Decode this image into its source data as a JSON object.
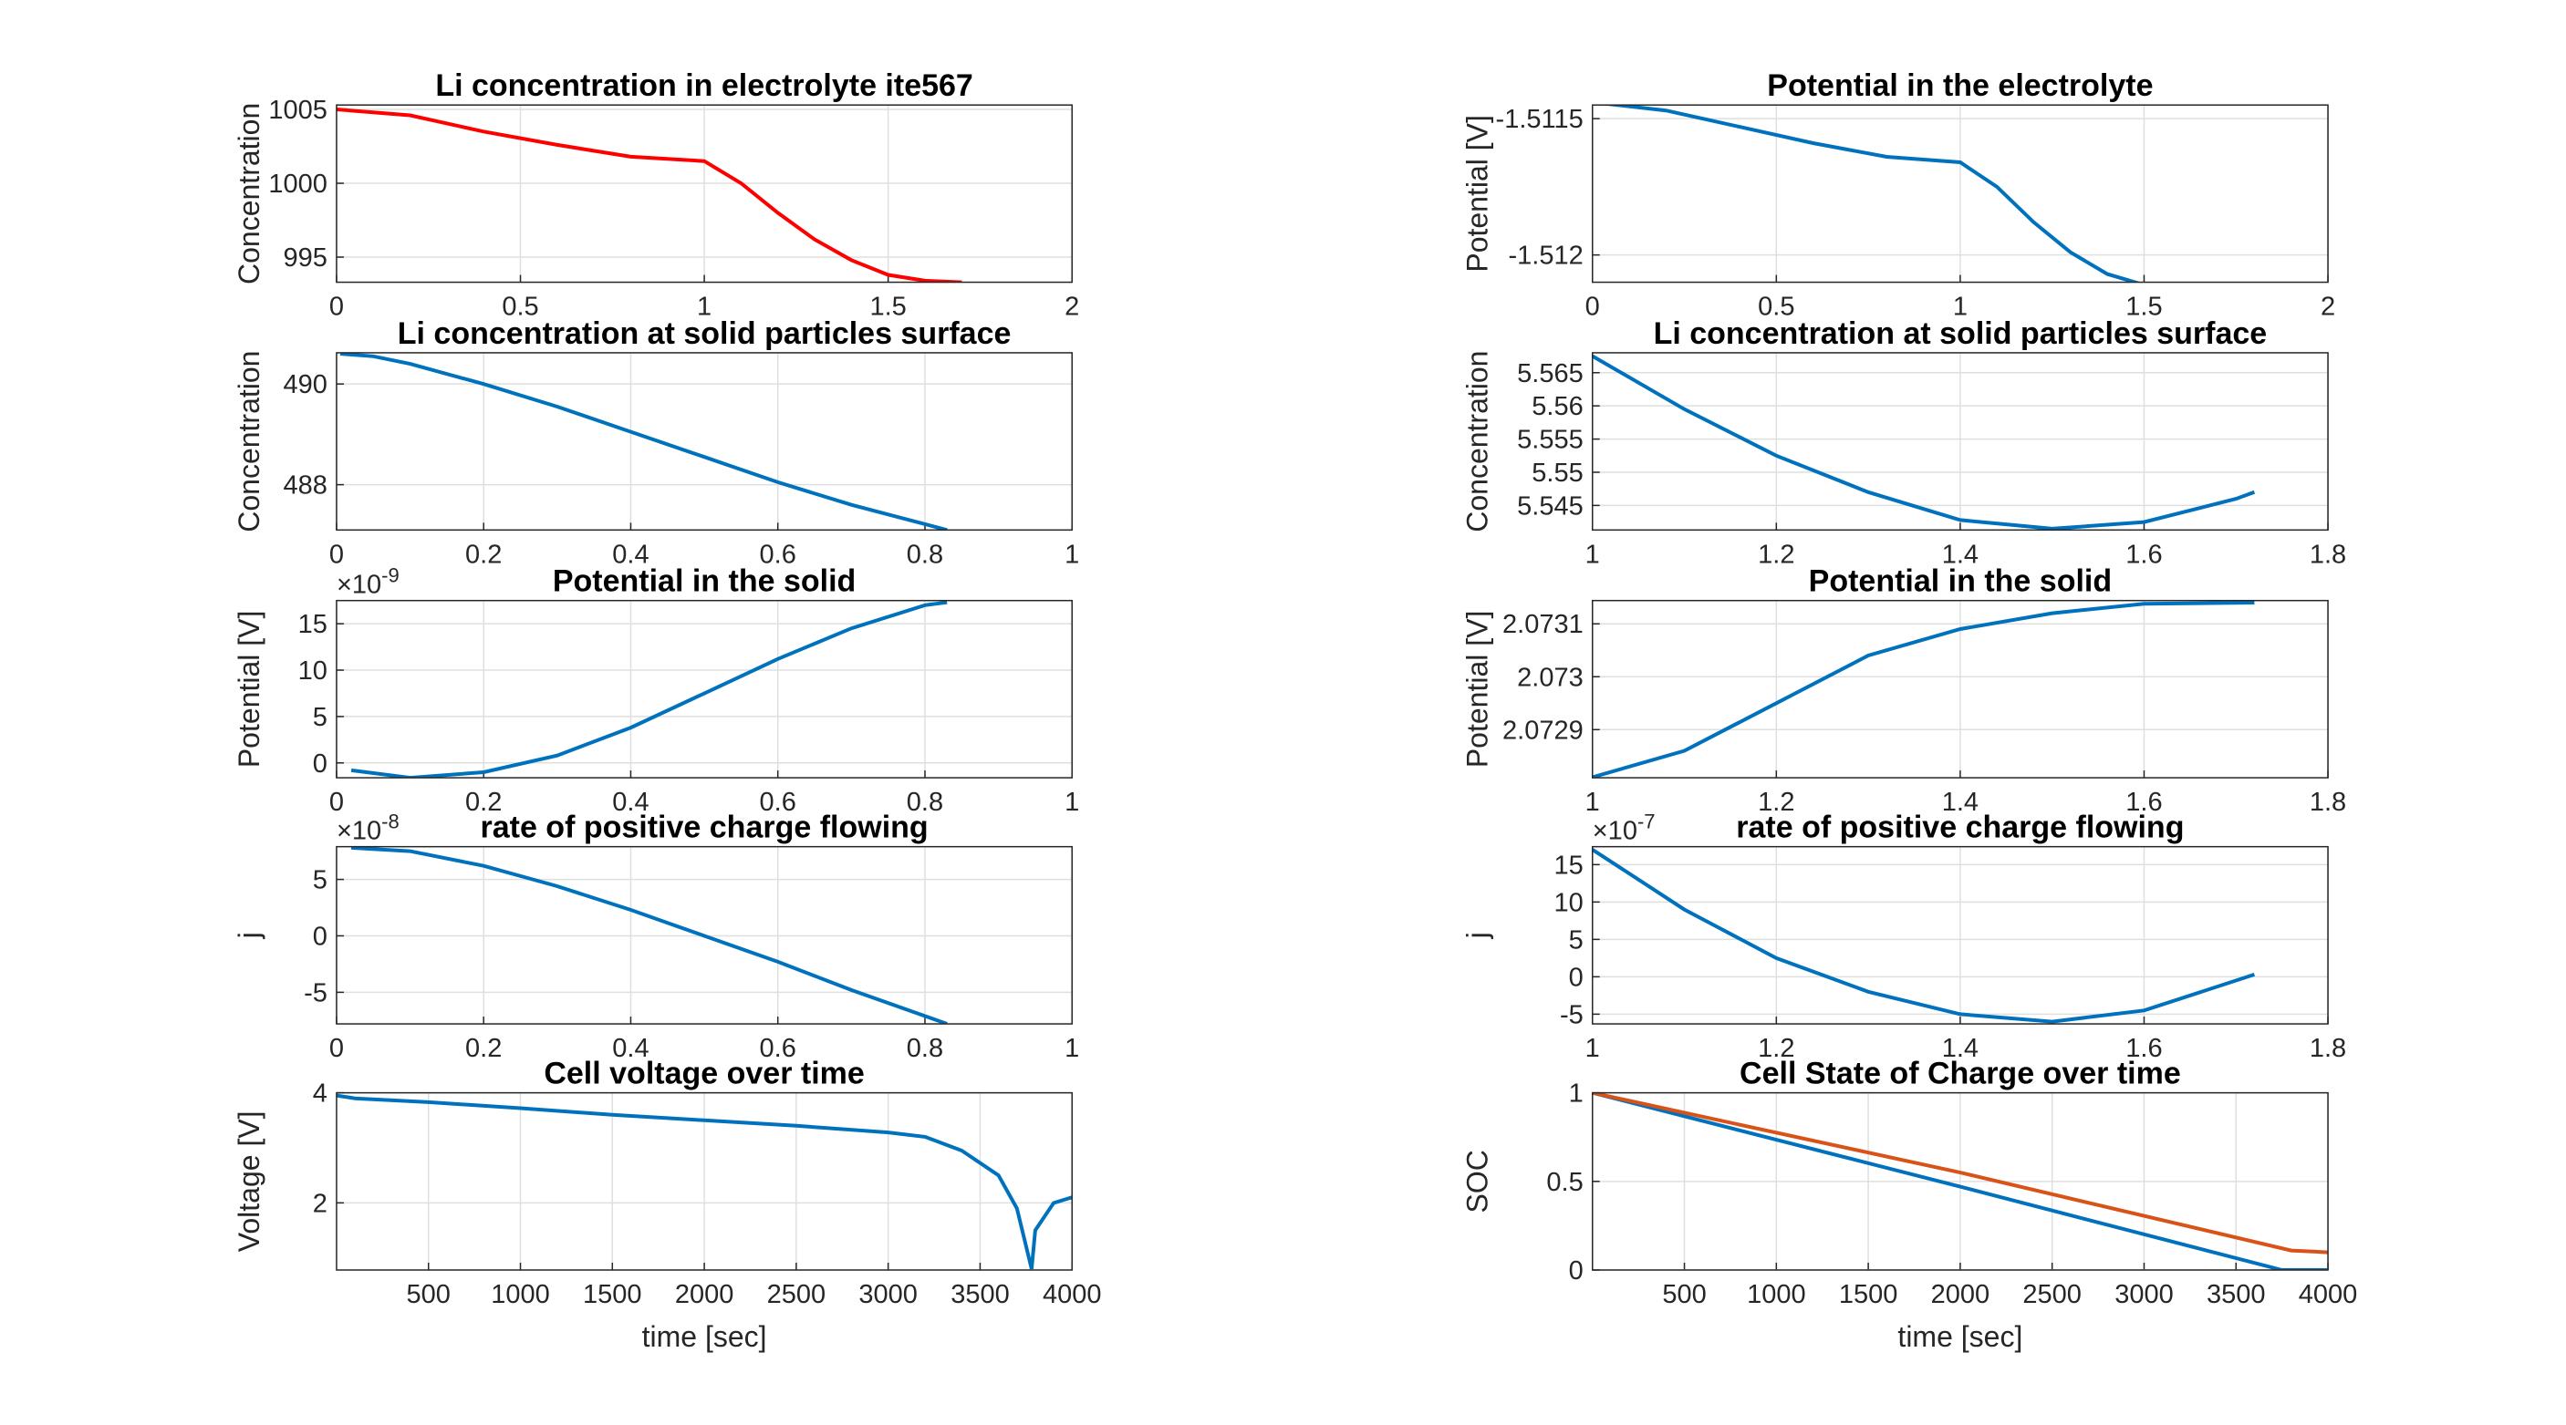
{
  "chart_data": [
    {
      "type": "line",
      "title": "Li concentration in electrolyte ite567",
      "ylabel": "Concentration",
      "grid": true,
      "xlim": [
        0,
        2
      ],
      "xticks": [
        0,
        0.5,
        1,
        1.5,
        2
      ],
      "ylim": [
        993.3,
        1005.3
      ],
      "yticks": [
        995,
        1000,
        1005
      ],
      "series": [
        {
          "color": "#ff0000",
          "x": [
            0,
            0.2,
            0.4,
            0.6,
            0.8,
            1.0,
            1.1,
            1.2,
            1.3,
            1.4,
            1.5,
            1.6,
            1.7
          ],
          "values": [
            1005,
            1004.6,
            1003.5,
            1002.6,
            1001.8,
            1001.5,
            1000,
            998,
            996.2,
            994.8,
            993.8,
            993.4,
            993.3
          ]
        }
      ]
    },
    {
      "type": "line",
      "title": "Potential in the electrolyte",
      "ylabel": "Potential [V]",
      "grid": true,
      "xlim": [
        0,
        2
      ],
      "xticks": [
        0,
        0.5,
        1,
        1.5,
        2
      ],
      "ylim": [
        -1.5121,
        -1.51145
      ],
      "yticks": [
        -1.5115,
        -1.512
      ],
      "series": [
        {
          "color": "#0072bd",
          "x": [
            0,
            0.2,
            0.4,
            0.6,
            0.8,
            1.0,
            1.1,
            1.2,
            1.3,
            1.4,
            1.5,
            1.7
          ],
          "values": [
            -1.51144,
            -1.51147,
            -1.51153,
            -1.51159,
            -1.51164,
            -1.51166,
            -1.51175,
            -1.51188,
            -1.51199,
            -1.51207,
            -1.51211,
            -1.51212
          ]
        }
      ]
    },
    {
      "type": "line",
      "title": "Li concentration at solid particles surface",
      "ylabel": "Concentration",
      "grid": true,
      "xlim": [
        0,
        1
      ],
      "xticks": [
        0,
        0.2,
        0.4,
        0.6,
        0.8,
        1
      ],
      "ylim": [
        487.1,
        490.62
      ],
      "yticks": [
        488,
        490
      ],
      "series": [
        {
          "color": "#0072bd",
          "x": [
            0.005,
            0.05,
            0.1,
            0.2,
            0.3,
            0.4,
            0.5,
            0.6,
            0.7,
            0.83
          ],
          "values": [
            490.6,
            490.55,
            490.4,
            490.0,
            489.55,
            489.05,
            488.55,
            488.05,
            487.6,
            487.1
          ]
        }
      ]
    },
    {
      "type": "line",
      "title": "Li concentration at solid particles surface",
      "ylabel": "Concentration",
      "grid": true,
      "xlim": [
        1,
        1.8
      ],
      "xticks": [
        1,
        1.2,
        1.4,
        1.6,
        1.8
      ],
      "ylim": [
        5.5413,
        5.568
      ],
      "yticks": [
        5.545,
        5.55,
        5.555,
        5.56,
        5.565
      ],
      "series": [
        {
          "color": "#0072bd",
          "x": [
            1,
            1.1,
            1.2,
            1.3,
            1.4,
            1.5,
            1.6,
            1.7,
            1.72
          ],
          "values": [
            5.5675,
            5.5595,
            5.5525,
            5.547,
            5.5428,
            5.5415,
            5.5425,
            5.546,
            5.547
          ]
        }
      ]
    },
    {
      "type": "line",
      "title": "Potential in the solid",
      "ylabel": "Potential [V]",
      "grid": true,
      "y_exponent": {
        "base": "×10",
        "power": "-9"
      },
      "xlim": [
        0,
        1
      ],
      "xticks": [
        0,
        0.2,
        0.4,
        0.6,
        0.8,
        1
      ],
      "ylim": [
        -1.6,
        17.5
      ],
      "yticks": [
        0,
        5,
        10,
        15
      ],
      "series": [
        {
          "color": "#0072bd",
          "x": [
            0.02,
            0.1,
            0.2,
            0.3,
            0.4,
            0.5,
            0.6,
            0.7,
            0.8,
            0.83
          ],
          "values": [
            -0.8,
            -1.6,
            -1,
            0.8,
            3.8,
            7.5,
            11.2,
            14.5,
            17,
            17.3
          ]
        }
      ]
    },
    {
      "type": "line",
      "title": "Potential in the solid",
      "ylabel": "Potential [V]",
      "grid": true,
      "xlim": [
        1,
        1.8
      ],
      "xticks": [
        1,
        1.2,
        1.4,
        1.6,
        1.8
      ],
      "ylim": [
        2.072809,
        2.073144
      ],
      "yticks": [
        2.0729,
        2.073,
        2.0731
      ],
      "series": [
        {
          "color": "#0072bd",
          "x": [
            1,
            1.1,
            1.2,
            1.3,
            1.4,
            1.5,
            1.6,
            1.72
          ],
          "values": [
            2.07281,
            2.07286,
            2.07295,
            2.07304,
            2.07309,
            2.07312,
            2.073138,
            2.07314
          ]
        }
      ]
    },
    {
      "type": "line",
      "title": "rate of positive charge flowing",
      "ylabel": "j",
      "grid": true,
      "y_exponent": {
        "base": "×10",
        "power": "-8"
      },
      "xlim": [
        0,
        1
      ],
      "xticks": [
        0,
        0.2,
        0.4,
        0.6,
        0.8,
        1
      ],
      "ylim": [
        -7.8,
        7.9
      ],
      "yticks": [
        -5,
        0,
        5
      ],
      "series": [
        {
          "color": "#0072bd",
          "x": [
            0.02,
            0.1,
            0.2,
            0.3,
            0.4,
            0.5,
            0.6,
            0.7,
            0.83
          ],
          "values": [
            7.8,
            7.5,
            6.2,
            4.4,
            2.3,
            0,
            -2.3,
            -4.8,
            -7.8
          ]
        }
      ]
    },
    {
      "type": "line",
      "title": "rate of positive charge flowing",
      "ylabel": "j",
      "grid": true,
      "y_exponent": {
        "base": "×10",
        "power": "-7"
      },
      "xlim": [
        1,
        1.8
      ],
      "xticks": [
        1,
        1.2,
        1.4,
        1.6,
        1.8
      ],
      "ylim": [
        -6.3,
        17.4
      ],
      "yticks": [
        -5,
        0,
        5,
        10,
        15
      ],
      "series": [
        {
          "color": "#0072bd",
          "x": [
            1,
            1.1,
            1.2,
            1.3,
            1.4,
            1.5,
            1.6,
            1.72
          ],
          "values": [
            17,
            9,
            2.5,
            -2,
            -5,
            -6,
            -4.5,
            0.3
          ]
        }
      ]
    },
    {
      "type": "line",
      "title": "Cell voltage over time",
      "ylabel": "Voltage [V]",
      "xlabel": "time [sec]",
      "grid": true,
      "xlim": [
        0,
        4000
      ],
      "xticks": [
        500,
        1000,
        1500,
        2000,
        2500,
        3000,
        3500,
        4000
      ],
      "ylim": [
        0.78,
        4
      ],
      "yticks": [
        2,
        4
      ],
      "series": [
        {
          "color": "#0072bd",
          "x": [
            0,
            100,
            500,
            1000,
            1500,
            2000,
            2500,
            3000,
            3200,
            3400,
            3600,
            3700,
            3780,
            3800,
            3900,
            4000
          ],
          "values": [
            3.95,
            3.9,
            3.83,
            3.72,
            3.6,
            3.5,
            3.4,
            3.28,
            3.2,
            2.95,
            2.5,
            1.9,
            0.8,
            1.5,
            2.0,
            2.1
          ]
        }
      ]
    },
    {
      "type": "line",
      "title": "Cell State of Charge over time",
      "ylabel": "SOC",
      "xlabel": "time [sec]",
      "grid": true,
      "xlim": [
        0,
        4000
      ],
      "xticks": [
        500,
        1000,
        1500,
        2000,
        2500,
        3000,
        3500,
        4000
      ],
      "ylim": [
        0,
        1
      ],
      "yticks": [
        0,
        0.5,
        1
      ],
      "series": [
        {
          "color": "#0072bd",
          "x": [
            0,
            2000,
            3750,
            4000
          ],
          "values": [
            1,
            0.47,
            0,
            0
          ]
        },
        {
          "color": "#d95319",
          "x": [
            0,
            2000,
            3800,
            4000
          ],
          "values": [
            1,
            0.55,
            0.11,
            0.1
          ]
        }
      ]
    }
  ]
}
